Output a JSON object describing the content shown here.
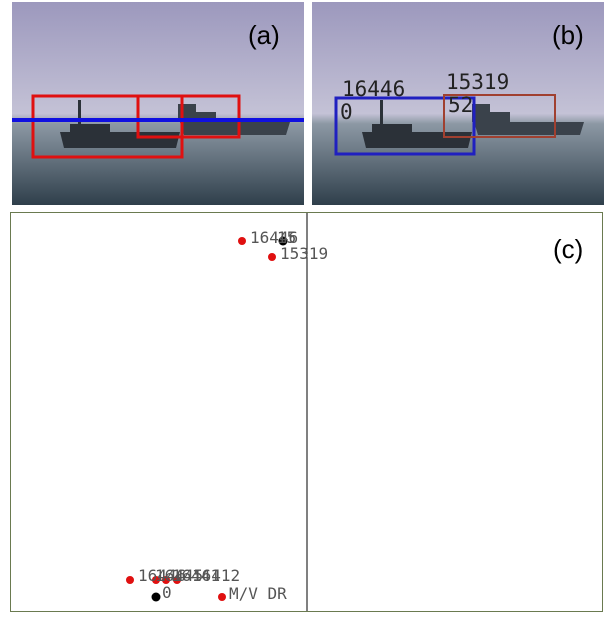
{
  "panel_a": {
    "label": "(a)"
  },
  "panel_b": {
    "label": "(b)",
    "annotations": [
      "16446",
      "15319",
      "0",
      "52"
    ]
  },
  "panel_c": {
    "label": "(c)",
    "top_points": [
      "16446",
      "15",
      "15319"
    ],
    "bottom_points": [
      "16446",
      "16445",
      "16441",
      "16412",
      "0",
      "M/V DR"
    ]
  }
}
